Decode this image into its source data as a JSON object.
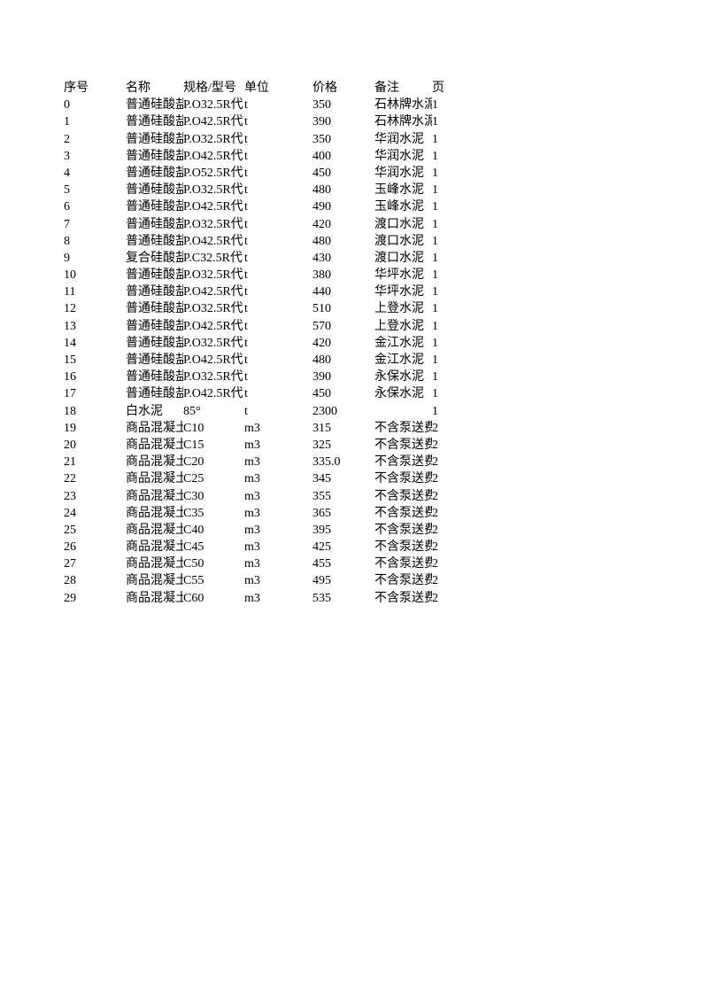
{
  "table": {
    "headers": {
      "seq": "序号",
      "name": "名称",
      "spec": "规格/型号",
      "unit": "单位",
      "price": "价格",
      "remark": "备注",
      "page": "页"
    },
    "rows": [
      {
        "seq": "0",
        "name": "普通硅酸盐",
        "spec": "P.O32.5R代",
        "unit": "t",
        "price": "350",
        "remark": "石林牌水泥",
        "page": "1"
      },
      {
        "seq": "1",
        "name": "普通硅酸盐",
        "spec": "P.O42.5R代",
        "unit": "t",
        "price": "390",
        "remark": "石林牌水泥",
        "page": "1"
      },
      {
        "seq": "2",
        "name": "普通硅酸盐",
        "spec": "P.O32.5R代",
        "unit": "t",
        "price": "350",
        "remark": "华润水泥",
        "page": "1"
      },
      {
        "seq": "3",
        "name": "普通硅酸盐",
        "spec": "P.O42.5R代",
        "unit": "t",
        "price": "400",
        "remark": "华润水泥",
        "page": "1"
      },
      {
        "seq": "4",
        "name": "普通硅酸盐",
        "spec": "P.O52.5R代",
        "unit": "t",
        "price": "450",
        "remark": "华润水泥",
        "page": "1"
      },
      {
        "seq": "5",
        "name": "普通硅酸盐",
        "spec": "P.O32.5R代",
        "unit": "t",
        "price": "480",
        "remark": "玉峰水泥",
        "page": "1"
      },
      {
        "seq": "6",
        "name": "普通硅酸盐",
        "spec": "P.O42.5R代",
        "unit": "t",
        "price": "490",
        "remark": "玉峰水泥",
        "page": "1"
      },
      {
        "seq": "7",
        "name": "普通硅酸盐",
        "spec": "P.O32.5R代",
        "unit": "t",
        "price": "420",
        "remark": "渡口水泥",
        "page": "1"
      },
      {
        "seq": "8",
        "name": "普通硅酸盐",
        "spec": "P.O42.5R代",
        "unit": "t",
        "price": "480",
        "remark": "渡口水泥",
        "page": "1"
      },
      {
        "seq": "9",
        "name": "复合硅酸盐",
        "spec": "P.C32.5R代",
        "unit": "t",
        "price": "430",
        "remark": "渡口水泥",
        "page": "1"
      },
      {
        "seq": "10",
        "name": "普通硅酸盐",
        "spec": "P.O32.5R代",
        "unit": "t",
        "price": "380",
        "remark": "华坪水泥",
        "page": "1"
      },
      {
        "seq": "11",
        "name": "普通硅酸盐",
        "spec": "P.O42.5R代",
        "unit": "t",
        "price": "440",
        "remark": "华坪水泥",
        "page": "1"
      },
      {
        "seq": "12",
        "name": "普通硅酸盐",
        "spec": "P.O32.5R代",
        "unit": "t",
        "price": "510",
        "remark": "上登水泥",
        "page": "1"
      },
      {
        "seq": "13",
        "name": "普通硅酸盐",
        "spec": "P.O42.5R代",
        "unit": "t",
        "price": "570",
        "remark": "上登水泥",
        "page": "1"
      },
      {
        "seq": "14",
        "name": "普通硅酸盐",
        "spec": "P.O32.5R代",
        "unit": "t",
        "price": "420",
        "remark": "金江水泥",
        "page": "1"
      },
      {
        "seq": "15",
        "name": "普通硅酸盐",
        "spec": "P.O42.5R代",
        "unit": "t",
        "price": "480",
        "remark": "金江水泥",
        "page": "1"
      },
      {
        "seq": "16",
        "name": "普通硅酸盐",
        "spec": "P.O32.5R代",
        "unit": "t",
        "price": "390",
        "remark": "永保水泥",
        "page": "1"
      },
      {
        "seq": "17",
        "name": "普通硅酸盐",
        "spec": "P.O42.5R代",
        "unit": "t",
        "price": "450",
        "remark": "永保水泥",
        "page": "1"
      },
      {
        "seq": "18",
        "name": "白水泥",
        "spec": "85°",
        "unit": "t",
        "price": "2300",
        "remark": "",
        "page": "1"
      },
      {
        "seq": "19",
        "name": "商品混凝土",
        "spec": "C10",
        "unit": "m3",
        "price": "315",
        "remark": "不含泵送费",
        "page": "2"
      },
      {
        "seq": "20",
        "name": "商品混凝土",
        "spec": "C15",
        "unit": "m3",
        "price": "325",
        "remark": "不含泵送费",
        "page": "2"
      },
      {
        "seq": "21",
        "name": "商品混凝土",
        "spec": "C20",
        "unit": "m3",
        "price": "335.0",
        "remark": "不含泵送费",
        "page": "2"
      },
      {
        "seq": "22",
        "name": "商品混凝土",
        "spec": "C25",
        "unit": "m3",
        "price": "345",
        "remark": "不含泵送费",
        "page": "2"
      },
      {
        "seq": "23",
        "name": "商品混凝土",
        "spec": "C30",
        "unit": "m3",
        "price": "355",
        "remark": "不含泵送费",
        "page": "2"
      },
      {
        "seq": "24",
        "name": "商品混凝土",
        "spec": "C35",
        "unit": "m3",
        "price": "365",
        "remark": "不含泵送费",
        "page": "2"
      },
      {
        "seq": "25",
        "name": "商品混凝土",
        "spec": "C40",
        "unit": "m3",
        "price": "395",
        "remark": "不含泵送费",
        "page": "2"
      },
      {
        "seq": "26",
        "name": "商品混凝土",
        "spec": "C45",
        "unit": "m3",
        "price": "425",
        "remark": "不含泵送费",
        "page": "2"
      },
      {
        "seq": "27",
        "name": "商品混凝土",
        "spec": "C50",
        "unit": "m3",
        "price": "455",
        "remark": "不含泵送费",
        "page": "2"
      },
      {
        "seq": "28",
        "name": "商品混凝土",
        "spec": "C55",
        "unit": "m3",
        "price": "495",
        "remark": "不含泵送费",
        "page": "2"
      },
      {
        "seq": "29",
        "name": "商品混凝土",
        "spec": "C60",
        "unit": "m3",
        "price": "535",
        "remark": "不含泵送费",
        "page": "2"
      }
    ]
  },
  "style": {
    "background_color": "#ffffff",
    "text_color": "#000000",
    "font_family": "SimSun",
    "font_size": 14,
    "row_height": 19.2,
    "col_widths": {
      "seq": 70,
      "name": 65,
      "spec": 69,
      "unit": 77,
      "price": 70,
      "remark": 65,
      "page": 30
    }
  }
}
